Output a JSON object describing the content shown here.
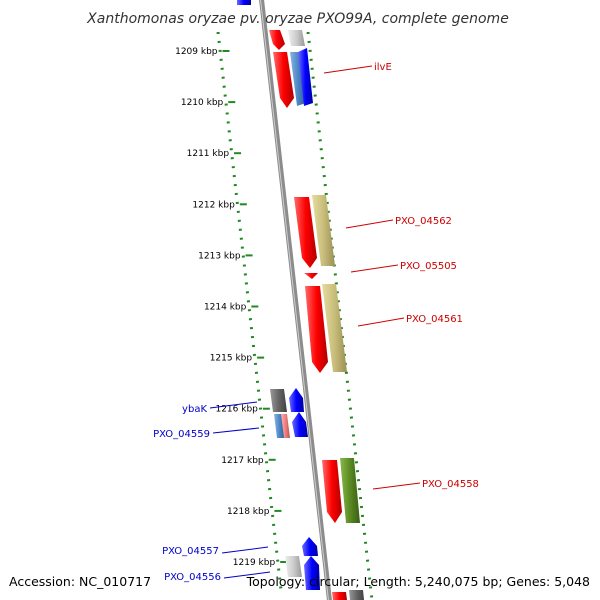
{
  "title": "Xanthomonas oryzae pv. oryzae PXO99A, complete genome",
  "ticks": [
    "1209 kbp",
    "1210 kbp",
    "1211 kbp",
    "1212 kbp",
    "1213 kbp",
    "1214 kbp",
    "1215 kbp",
    "1216 kbp",
    "1217 kbp",
    "1218 kbp",
    "1219 kbp"
  ],
  "labels": [
    {
      "name": "ilvE",
      "strand": "forward"
    },
    {
      "name": "PXO_04562",
      "strand": "forward"
    },
    {
      "name": "PXO_05505",
      "strand": "forward"
    },
    {
      "name": "PXO_04561",
      "strand": "forward"
    },
    {
      "name": "PXO_04558",
      "strand": "forward"
    },
    {
      "name": "ybaK",
      "strand": "reverse"
    },
    {
      "name": "PXO_04559",
      "strand": "reverse"
    },
    {
      "name": "PXO_04557",
      "strand": "reverse"
    },
    {
      "name": "PXO_04556",
      "strand": "reverse"
    }
  ],
  "colors": {
    "forward_label": "#cc0000",
    "reverse_label": "#0000cc",
    "backbone": "#888888",
    "tick_marks": "#228822",
    "cds_forward": "#ff0000",
    "cds_reverse": "#0000ff",
    "cog_khaki": "#c8bd7a",
    "cog_green": "#5a8a22",
    "cog_steelblue": "#4c86c6",
    "cog_grey": "#666666",
    "cog_pink": "#f08080"
  },
  "footer": {
    "accession": "Accession: NC_010717",
    "info": "Topology: circular; Length: 5,240,075 bp; Genes: 5,048"
  }
}
